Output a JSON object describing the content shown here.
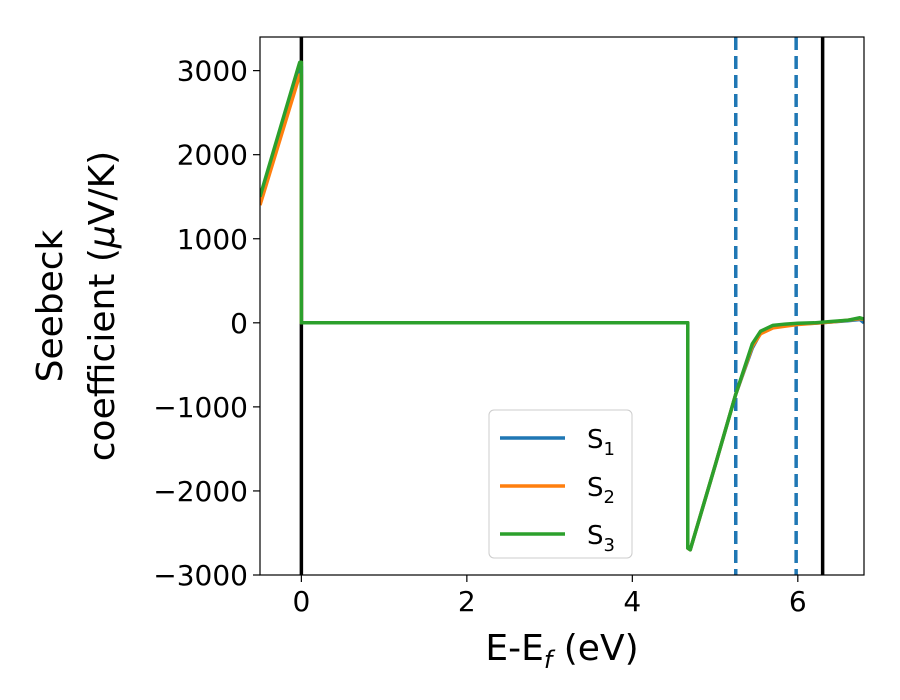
{
  "chart_data": {
    "type": "line",
    "xlabel": {
      "main": "E-E",
      "sub": "f",
      "unit": " (eV)"
    },
    "ylabel": {
      "line1": "Seebeck",
      "line2_pre": "coefficient  (",
      "line2_mu": "μ",
      "line2_post": "V/K)"
    },
    "xlim": [
      -0.5,
      6.8
    ],
    "ylim": [
      -3000,
      3400
    ],
    "x_ticks": [
      0,
      2,
      4,
      6
    ],
    "x_tick_labels": [
      "0",
      "2",
      "4",
      "6"
    ],
    "y_ticks": [
      -3000,
      -2000,
      -1000,
      0,
      1000,
      2000,
      3000
    ],
    "y_tick_labels": [
      "−3000",
      "−2000",
      "−1000",
      "0",
      "1000",
      "2000",
      "3000"
    ],
    "grid": false,
    "legend_placement": "lower-center",
    "vertical_lines": [
      {
        "x": 0.0,
        "style": "solid",
        "color": "#000000"
      },
      {
        "x": 5.25,
        "style": "dashed",
        "color": "#1f77b4"
      },
      {
        "x": 5.98,
        "style": "dashed",
        "color": "#1f77b4"
      },
      {
        "x": 6.3,
        "style": "solid",
        "color": "#000000"
      }
    ],
    "series": [
      {
        "name": {
          "base": "S",
          "sub": "1"
        },
        "color": "#1f77b4",
        "x": [
          -0.5,
          -0.02,
          0.0,
          0.0,
          4.67,
          4.67,
          4.7,
          5.0,
          5.25,
          5.45,
          5.55,
          5.7,
          5.85,
          6.0,
          6.2,
          6.4,
          6.6,
          6.75,
          6.8
        ],
        "y": [
          1450,
          3050,
          3050,
          0,
          0,
          -2680,
          -2700,
          -1700,
          -850,
          -300,
          -120,
          -40,
          -20,
          -10,
          -5,
          10,
          25,
          40,
          0
        ]
      },
      {
        "name": {
          "base": "S",
          "sub": "2"
        },
        "color": "#ff7f0e",
        "x": [
          -0.5,
          -0.02,
          0.0,
          0.0,
          4.67,
          4.67,
          4.7,
          5.0,
          5.25,
          5.45,
          5.55,
          5.7,
          5.85,
          6.0,
          6.2,
          6.4,
          6.6,
          6.75,
          6.8
        ],
        "y": [
          1400,
          2950,
          2950,
          0,
          0,
          -2680,
          -2700,
          -1700,
          -850,
          -280,
          -130,
          -60,
          -40,
          -20,
          -5,
          10,
          30,
          50,
          40
        ]
      },
      {
        "name": {
          "base": "S",
          "sub": "3"
        },
        "color": "#2ca02c",
        "x": [
          -0.5,
          -0.02,
          0.0,
          0.0,
          4.67,
          4.67,
          4.7,
          5.0,
          5.25,
          5.45,
          5.55,
          5.7,
          5.85,
          6.0,
          6.2,
          6.4,
          6.6,
          6.75,
          6.8
        ],
        "y": [
          1500,
          3100,
          3100,
          0,
          0,
          -2680,
          -2700,
          -1700,
          -850,
          -250,
          -100,
          -30,
          -15,
          -5,
          0,
          15,
          30,
          60,
          45
        ]
      }
    ]
  }
}
